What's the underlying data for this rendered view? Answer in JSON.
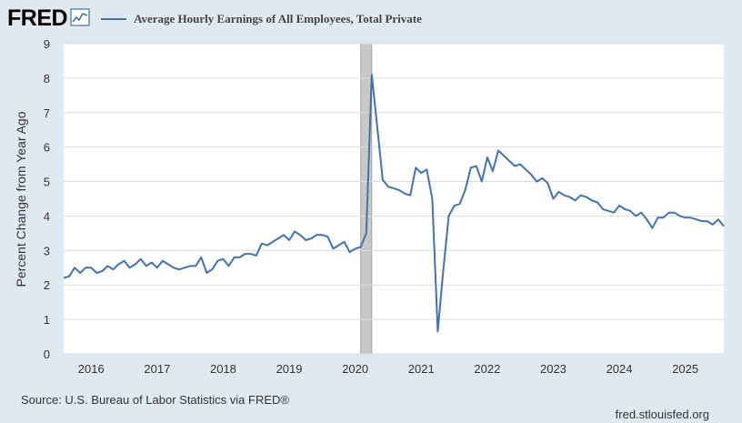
{
  "header": {
    "logo_text": "FRED",
    "logo_icon": "line-chart-icon",
    "series_title": "Average Hourly Earnings of All Employees, Total Private"
  },
  "footer": {
    "source": "Source: U.S. Bureau of Labor Statistics via FRED®",
    "url": "fred.stlouisfed.org"
  },
  "colors": {
    "series": "#4572a7",
    "recession": "#c8c8c8",
    "plot_bg": "#ffffff",
    "page_bg": "#e1e9f0",
    "grid": "#dcdcdc"
  },
  "chart_data": {
    "type": "line",
    "title": "Average Hourly Earnings of All Employees, Total Private",
    "ylabel": "Percent Change from Year Ago",
    "xlabel": "",
    "ylim": [
      0,
      9
    ],
    "yticks": [
      0,
      1,
      2,
      3,
      4,
      5,
      6,
      7,
      8,
      9
    ],
    "xticks": [
      "2016",
      "2017",
      "2018",
      "2019",
      "2020",
      "2021",
      "2022",
      "2023",
      "2024",
      "2025"
    ],
    "xlim": [
      "2015-08",
      "2025-08"
    ],
    "grid": true,
    "recession": {
      "start": "2020-02",
      "end": "2020-04"
    },
    "series": [
      {
        "name": "Average Hourly Earnings of All Employees, Total Private",
        "x": [
          "2015-08",
          "2015-09",
          "2015-10",
          "2015-11",
          "2015-12",
          "2016-01",
          "2016-02",
          "2016-03",
          "2016-04",
          "2016-05",
          "2016-06",
          "2016-07",
          "2016-08",
          "2016-09",
          "2016-10",
          "2016-11",
          "2016-12",
          "2017-01",
          "2017-02",
          "2017-03",
          "2017-04",
          "2017-05",
          "2017-06",
          "2017-07",
          "2017-08",
          "2017-09",
          "2017-10",
          "2017-11",
          "2017-12",
          "2018-01",
          "2018-02",
          "2018-03",
          "2018-04",
          "2018-05",
          "2018-06",
          "2018-07",
          "2018-08",
          "2018-09",
          "2018-10",
          "2018-11",
          "2018-12",
          "2019-01",
          "2019-02",
          "2019-03",
          "2019-04",
          "2019-05",
          "2019-06",
          "2019-07",
          "2019-08",
          "2019-09",
          "2019-10",
          "2019-11",
          "2019-12",
          "2020-01",
          "2020-02",
          "2020-03",
          "2020-04",
          "2020-05",
          "2020-06",
          "2020-07",
          "2020-08",
          "2020-09",
          "2020-10",
          "2020-11",
          "2020-12",
          "2021-01",
          "2021-02",
          "2021-03",
          "2021-04",
          "2021-05",
          "2021-06",
          "2021-07",
          "2021-08",
          "2021-09",
          "2021-10",
          "2021-11",
          "2021-12",
          "2022-01",
          "2022-02",
          "2022-03",
          "2022-04",
          "2022-05",
          "2022-06",
          "2022-07",
          "2022-08",
          "2022-09",
          "2022-10",
          "2022-11",
          "2022-12",
          "2023-01",
          "2023-02",
          "2023-03",
          "2023-04",
          "2023-05",
          "2023-06",
          "2023-07",
          "2023-08",
          "2023-09",
          "2023-10",
          "2023-11",
          "2023-12",
          "2024-01",
          "2024-02",
          "2024-03",
          "2024-04",
          "2024-05",
          "2024-06",
          "2024-07",
          "2024-08",
          "2024-09",
          "2024-10",
          "2024-11",
          "2024-12",
          "2025-01",
          "2025-02",
          "2025-03",
          "2025-04",
          "2025-05",
          "2025-06",
          "2025-07",
          "2025-08"
        ],
        "values": [
          2.2,
          2.25,
          2.5,
          2.35,
          2.5,
          2.5,
          2.35,
          2.4,
          2.55,
          2.45,
          2.6,
          2.7,
          2.5,
          2.6,
          2.75,
          2.55,
          2.65,
          2.5,
          2.7,
          2.6,
          2.5,
          2.45,
          2.5,
          2.55,
          2.55,
          2.8,
          2.35,
          2.45,
          2.7,
          2.75,
          2.55,
          2.8,
          2.8,
          2.9,
          2.9,
          2.85,
          3.2,
          3.15,
          3.25,
          3.35,
          3.45,
          3.3,
          3.55,
          3.45,
          3.3,
          3.35,
          3.45,
          3.45,
          3.4,
          3.05,
          3.15,
          3.25,
          2.95,
          3.05,
          3.1,
          3.5,
          8.1,
          6.6,
          5.05,
          4.85,
          4.8,
          4.75,
          4.65,
          4.6,
          5.4,
          5.25,
          5.35,
          4.5,
          0.65,
          2.4,
          4.0,
          4.3,
          4.35,
          4.75,
          5.4,
          5.45,
          5.0,
          5.7,
          5.3,
          5.9,
          5.75,
          5.6,
          5.45,
          5.5,
          5.35,
          5.2,
          5.0,
          5.1,
          4.95,
          4.5,
          4.7,
          4.6,
          4.55,
          4.45,
          4.6,
          4.55,
          4.45,
          4.4,
          4.2,
          4.15,
          4.1,
          4.3,
          4.2,
          4.15,
          4.0,
          4.1,
          3.9,
          3.65,
          3.95,
          3.95,
          4.1,
          4.1,
          4.0,
          3.95,
          3.95,
          3.9,
          3.85,
          3.85,
          3.75,
          3.9,
          3.7
        ]
      }
    ]
  }
}
